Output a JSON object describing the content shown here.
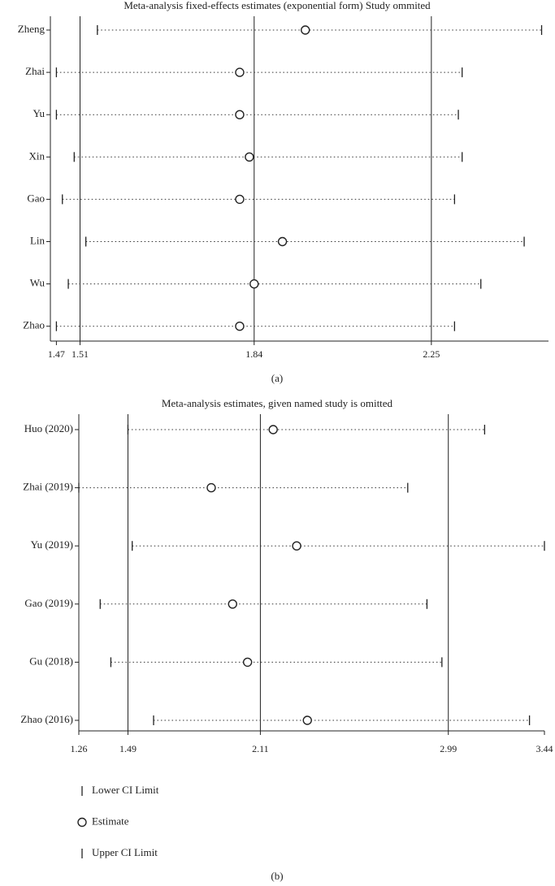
{
  "chart_data": [
    {
      "type": "forest",
      "title": "Meta-analysis fixed-effects estimates (exponential form) Study ommited",
      "panel": "(a)",
      "log_x": true,
      "categories": [
        "Zheng",
        "Zhai",
        "Yu",
        "Xin",
        "Gao",
        "Lin",
        "Wu",
        "Zhao"
      ],
      "lower": [
        1.54,
        1.47,
        1.47,
        1.5,
        1.48,
        1.52,
        1.49,
        1.47
      ],
      "estimate": [
        1.95,
        1.81,
        1.81,
        1.83,
        1.81,
        1.9,
        1.84,
        1.81
      ],
      "upper": [
        2.55,
        2.33,
        2.32,
        2.33,
        2.31,
        2.5,
        2.38,
        2.31
      ],
      "xlim": [
        1.46,
        2.57
      ],
      "xticks": [
        1.47,
        1.51,
        1.84,
        2.25
      ],
      "reference_lines": [
        1.51,
        1.84,
        2.25
      ]
    },
    {
      "type": "forest",
      "title": "Meta-analysis estimates, given named study is omitted",
      "panel": "(b)",
      "log_x": false,
      "categories": [
        "Huo (2020)",
        "Zhai (2019)",
        "Yu (2019)",
        "Gao (2019)",
        "Gu (2018)",
        "Zhao (2016)"
      ],
      "lower": [
        1.49,
        1.26,
        1.51,
        1.36,
        1.41,
        1.61
      ],
      "estimate": [
        2.17,
        1.88,
        2.28,
        1.98,
        2.05,
        2.33
      ],
      "upper": [
        3.16,
        2.8,
        3.44,
        2.89,
        2.96,
        3.37
      ],
      "xlim": [
        1.26,
        3.44
      ],
      "xticks": [
        1.26,
        1.49,
        2.11,
        2.99,
        3.44
      ],
      "reference_lines": [
        1.49,
        2.11,
        2.99
      ],
      "legend": [
        "Lower CI Limit",
        "Estimate",
        "Upper CI Limit"
      ]
    }
  ]
}
